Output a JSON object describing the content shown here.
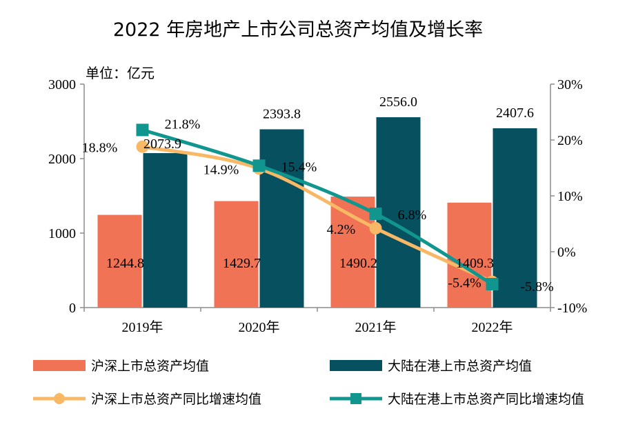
{
  "chart_data": {
    "type": "bar",
    "title": "2022 年房地产上市公司总资产均值及增长率",
    "unit_label": "单位：亿元",
    "categories": [
      "2019年",
      "2020年",
      "2021年",
      "2022年"
    ],
    "y_left": {
      "min": 0,
      "max": 3000,
      "ticks": [
        "0",
        "1000",
        "2000",
        "3000"
      ]
    },
    "y_right": {
      "min": -10,
      "max": 30,
      "ticks": [
        "-10%",
        "0%",
        "10%",
        "20%",
        "30%"
      ]
    },
    "grid": false,
    "legend_position": "bottom",
    "series": [
      {
        "name": "沪深上市总资产均值",
        "type": "bar",
        "axis": "left",
        "color": "#F07355",
        "values": [
          1244.8,
          1429.7,
          1490.2,
          1409.3
        ],
        "labels": [
          "1244.8",
          "1429.7",
          "1490.2",
          "1409.3"
        ]
      },
      {
        "name": "大陆在港上市总资产均值",
        "type": "bar",
        "axis": "left",
        "color": "#07505F",
        "values": [
          2073.9,
          2393.8,
          2556.0,
          2407.6
        ],
        "labels": [
          "2073.9",
          "2393.8",
          "2556.0",
          "2407.6"
        ]
      },
      {
        "name": "沪深上市总资产同比增速均值",
        "type": "line",
        "axis": "right",
        "color": "#F8B865",
        "marker": "circle",
        "values": [
          18.8,
          14.9,
          4.2,
          -5.4
        ],
        "labels": [
          "18.8%",
          "14.9%",
          "4.2%",
          "-5.4%"
        ]
      },
      {
        "name": "大陆在港上市总资产同比增速均值",
        "type": "line",
        "axis": "right",
        "color": "#10968E",
        "marker": "square",
        "values": [
          21.8,
          15.4,
          6.8,
          -5.8
        ],
        "labels": [
          "21.8%",
          "15.4%",
          "6.8%",
          "-5.8%"
        ]
      }
    ]
  }
}
